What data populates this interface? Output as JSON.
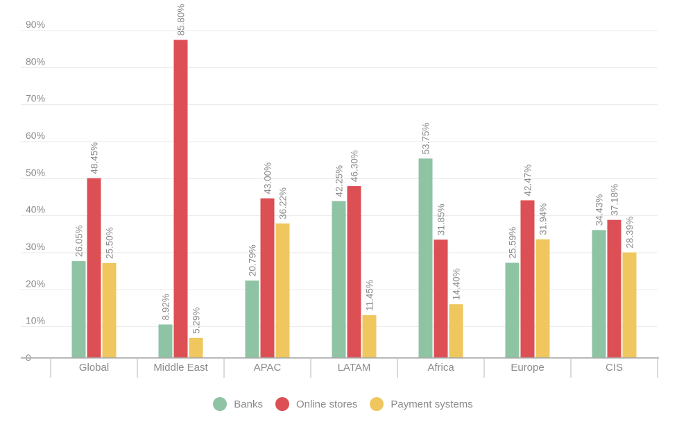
{
  "chart_data": {
    "type": "bar",
    "categories": [
      "Global",
      "Middle East",
      "APAC",
      "LATAM",
      "Africa",
      "Europe",
      "CIS"
    ],
    "series": [
      {
        "name": "Banks",
        "color": "#8ec3a4",
        "values": [
          26.05,
          8.92,
          20.79,
          42.25,
          53.75,
          25.59,
          34.43
        ],
        "labels": [
          "26.05%",
          "8.92%",
          "20.79%",
          "42.25%",
          "53.75%",
          "25.59%",
          "34.43%"
        ]
      },
      {
        "name": "Online stores",
        "color": "#dc4f55",
        "values": [
          48.45,
          85.8,
          43.0,
          46.3,
          31.85,
          42.47,
          37.18
        ],
        "labels": [
          "48.45%",
          "85.80%",
          "43.00%",
          "46.30%",
          "31.85%",
          "42.47%",
          "37.18%"
        ]
      },
      {
        "name": "Payment systems",
        "color": "#efc75e",
        "values": [
          25.5,
          5.29,
          36.22,
          11.45,
          14.4,
          31.94,
          28.39
        ],
        "labels": [
          "25.50%",
          "5.29%",
          "36.22%",
          "11.45%",
          "14.40%",
          "31.94%",
          "28.39%"
        ]
      }
    ],
    "ylim": [
      0,
      90
    ],
    "yticks": [
      0,
      10,
      20,
      30,
      40,
      50,
      60,
      70,
      80,
      90
    ],
    "ytick_labels": [
      "0",
      "10%",
      "20%",
      "30%",
      "40%",
      "50%",
      "60%",
      "70%",
      "80%",
      "90%"
    ],
    "grid": true,
    "legend_position": "bottom-center",
    "title": "",
    "xlabel": "",
    "ylabel": ""
  }
}
